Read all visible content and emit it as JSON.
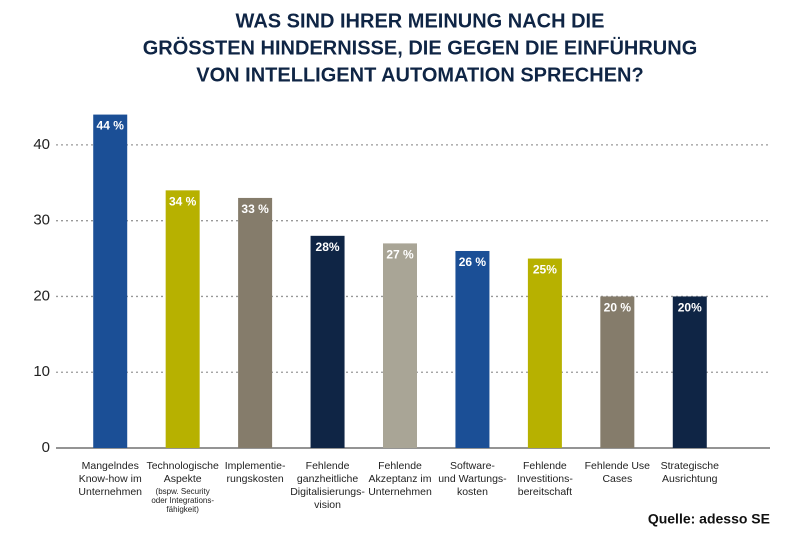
{
  "chart_data": {
    "type": "bar",
    "title": [
      "WAS SIND IHRER MEINUNG NACH DIE",
      "GRÖSSTEN HINDERNISSE, DIE GEGEN DIE EINFÜHRUNG",
      "VON INTELLIGENT AUTOMATION SPRECHEN?"
    ],
    "categories": [
      [
        "Mangelndes",
        "Know-how im",
        "Unternehmen"
      ],
      [
        "Technologische",
        "Aspekte",
        "(bspw. Security",
        "oder Integrations-",
        "fähigkeit)"
      ],
      [
        "Implementie-",
        "rungskosten"
      ],
      [
        "Fehlende",
        "ganzheitliche",
        "Digitalisierungs-",
        "vision"
      ],
      [
        "Fehlende",
        "Akzeptanz im",
        "Unternehmen"
      ],
      [
        "Software-",
        "und Wartungs-",
        "kosten"
      ],
      [
        "Fehlende",
        "Investitions-",
        "bereitschaft"
      ],
      [
        "Fehlende Use",
        "Cases"
      ],
      [
        "Strategische",
        "Ausrichtung"
      ]
    ],
    "values": [
      44,
      34,
      33,
      28,
      27,
      26,
      25,
      20,
      20
    ],
    "value_labels": [
      "44 %",
      "34 %",
      "33 %",
      "28%",
      "27 %",
      "26 %",
      "25%",
      "20 %",
      "20%"
    ],
    "colors": [
      "#1b4f96",
      "#b7b100",
      "#857c6b",
      "#0f2545",
      "#a9a596",
      "#1b4f96",
      "#b7b100",
      "#857c6b",
      "#0f2545"
    ],
    "ylim": [
      0,
      45
    ],
    "yticks": [
      0,
      10,
      20,
      30,
      40
    ],
    "grid": true,
    "source": "Quelle: adesso SE"
  }
}
